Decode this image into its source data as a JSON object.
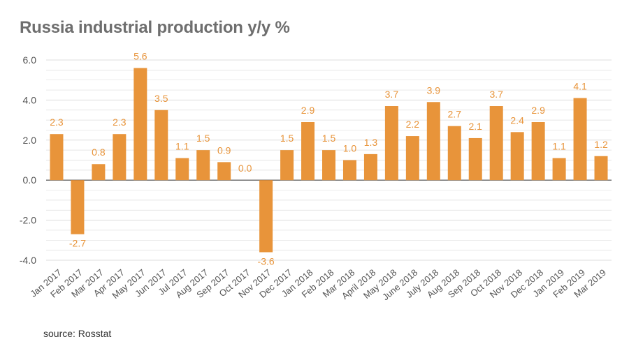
{
  "page": {
    "source_note": "source: Rosstat"
  },
  "colors": {
    "bar": "#e8943a",
    "label": "#e8943a",
    "grid": "#dddddd",
    "zero": "#444444",
    "tick": "#555555",
    "title": "#6e6e6e"
  },
  "chart_data": {
    "type": "bar",
    "title": "Russia industrial production y/y %",
    "xlabel": "",
    "ylabel": "",
    "ylim": [
      -4.0,
      6.0
    ],
    "yticks": [
      "6.0",
      "4.0",
      "2.0",
      "0.0",
      "-2.0",
      "-4.0"
    ],
    "ytick_values": [
      6,
      4,
      2,
      0,
      -2,
      -4
    ],
    "categories": [
      "Jan 2017",
      "Feb 2017",
      "Mar 2017",
      "Apr 2017",
      "May 2017",
      "Jun 2017",
      "Jul 2017",
      "Aug 2017",
      "Sep 2017",
      "Oct 2017",
      "Nov 2017",
      "Dec 2017",
      "Jan 2018",
      "Feb 2018",
      "Mar 2018",
      "April 2018",
      "May 2018",
      "June 2018",
      "July 2018",
      "Aug 2018",
      "Sep 2018",
      "Oct 2018",
      "Nov 2018",
      "Dec 2018",
      "Jan 2019",
      "Feb 2019",
      "Mar 2019"
    ],
    "values": [
      2.3,
      -2.7,
      0.8,
      2.3,
      5.6,
      3.5,
      1.1,
      1.5,
      0.9,
      0.0,
      -3.6,
      1.5,
      2.9,
      1.5,
      1.0,
      1.3,
      3.7,
      2.2,
      3.9,
      2.7,
      2.1,
      3.7,
      2.4,
      2.9,
      1.1,
      4.1,
      1.2
    ],
    "value_labels": [
      "2.3",
      "-2.7",
      "0.8",
      "2.3",
      "5.6",
      "3.5",
      "1.1",
      "1.5",
      "0.9",
      "0.0",
      "-3.6",
      "1.5",
      "2.9",
      "1.5",
      "1.0",
      "1.3",
      "3.7",
      "2.2",
      "3.9",
      "2.7",
      "2.1",
      "3.7",
      "2.4",
      "2.9",
      "1.1",
      "4.1",
      "1.2"
    ],
    "grid": true,
    "legend": "none"
  }
}
